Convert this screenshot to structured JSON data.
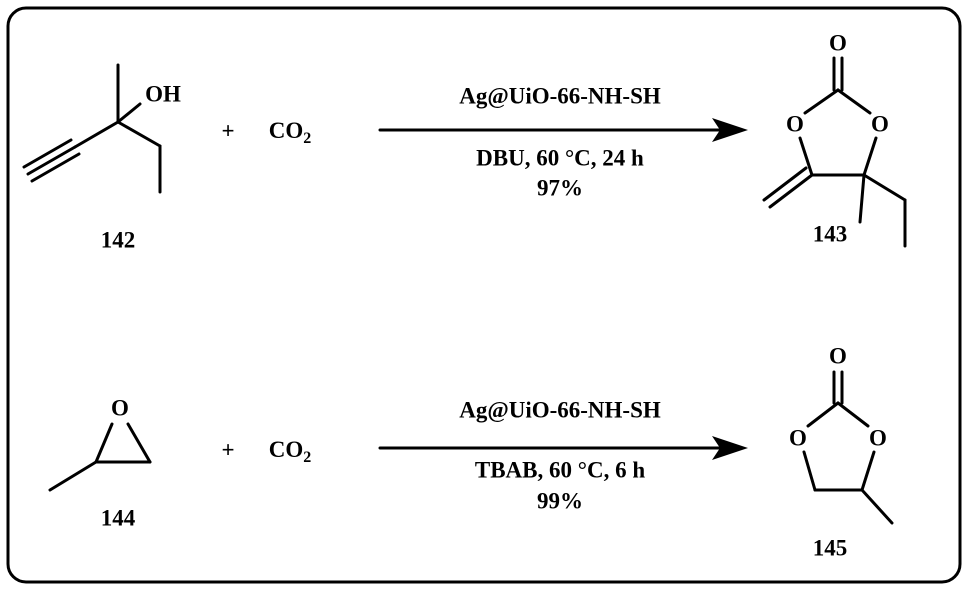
{
  "reactions": [
    {
      "reactant": {
        "label": "142",
        "atoms": [
          "OH"
        ]
      },
      "plus": "+",
      "co2": {
        "base": "CO",
        "sub": "2"
      },
      "reagent": "Ag@UiO-66-NH-SH",
      "conditions": "DBU, 60 °C, 24 h",
      "yield": "97%",
      "product": {
        "label": "143",
        "atoms": [
          "O",
          "O",
          "O"
        ]
      }
    },
    {
      "reactant": {
        "label": "144",
        "atoms": [
          "O"
        ]
      },
      "plus": "+",
      "co2": {
        "base": "CO",
        "sub": "2"
      },
      "reagent": "Ag@UiO-66-NH-SH",
      "conditions": "TBAB, 60 °C, 6 h",
      "yield": "99%",
      "product": {
        "label": "145",
        "atoms": [
          "O",
          "O",
          "O"
        ]
      }
    }
  ]
}
